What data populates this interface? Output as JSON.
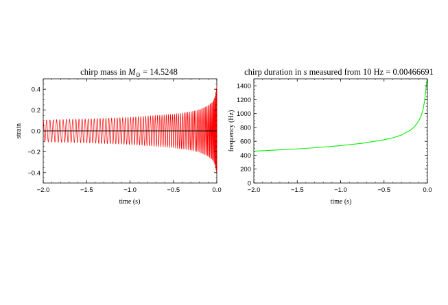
{
  "chart_data": [
    {
      "type": "line",
      "title_text": "chirp mass in ",
      "title_symbol": "M",
      "title_subscript": "⊙",
      "title_value": " = 14.5248",
      "xlabel": "time (s)",
      "ylabel": "strain",
      "xlim": [
        -2.0,
        0.0
      ],
      "ylim": [
        -0.5,
        0.5
      ],
      "x_ticks": [
        -2.0,
        -1.5,
        -1.0,
        -0.5,
        0.0
      ],
      "x_tick_labels": [
        "−2.0",
        "−1.5",
        "−1.0",
        "−0.5",
        "0.0"
      ],
      "y_ticks": [
        -0.4,
        -0.2,
        0.0,
        0.2,
        0.4
      ],
      "y_tick_labels": [
        "−0.4",
        "−0.2",
        "0.0",
        "0.2",
        "0.4"
      ],
      "series": [
        {
          "color": "#ff0000",
          "kind": "oscillating chirp strain",
          "envelope_x": [
            -2.0,
            -1.5,
            -1.0,
            -0.5,
            -0.3,
            -0.2,
            -0.1,
            -0.05,
            -0.02,
            0.0
          ],
          "envelope_y": [
            0.105,
            0.115,
            0.13,
            0.16,
            0.185,
            0.205,
            0.245,
            0.28,
            0.33,
            0.44
          ],
          "cycles": 82
        },
        {
          "color": "#000000",
          "kind": "zero line",
          "x": [
            -2.0,
            0.0
          ],
          "y": [
            0.0,
            0.0
          ]
        }
      ],
      "grid": false
    },
    {
      "type": "line",
      "title_prefix": "chirp duration in ",
      "title_symbol": "s",
      "title_suffix": " measured from 10 Hz = 0.00466691",
      "xlabel": "time (s)",
      "ylabel": "frequency (Hz)",
      "xlim": [
        -2.0,
        0.0
      ],
      "ylim": [
        0,
        1500
      ],
      "x_ticks": [
        -2.0,
        -1.5,
        -1.0,
        -0.5,
        0.0
      ],
      "x_tick_labels": [
        "−2.0",
        "−1.5",
        "−1.0",
        "−0.5",
        "0.0"
      ],
      "y_ticks": [
        0,
        200,
        400,
        600,
        800,
        1000,
        1200,
        1400
      ],
      "y_tick_labels": [
        "0",
        "200",
        "400",
        "600",
        "800",
        "1000",
        "1200",
        "1400"
      ],
      "series": [
        {
          "color": "#00ee00",
          "x": [
            -2.0,
            -1.75,
            -1.5,
            -1.25,
            -1.0,
            -0.75,
            -0.5,
            -0.4,
            -0.3,
            -0.2,
            -0.15,
            -0.1,
            -0.07,
            -0.05,
            -0.03,
            -0.015,
            -0.005,
            0.0
          ],
          "y": [
            458,
            474,
            491,
            512,
            538,
            572,
            622,
            650,
            690,
            757,
            808,
            893,
            975,
            1060,
            1200,
            1370,
            1480,
            1500
          ]
        }
      ],
      "grid": false
    }
  ]
}
